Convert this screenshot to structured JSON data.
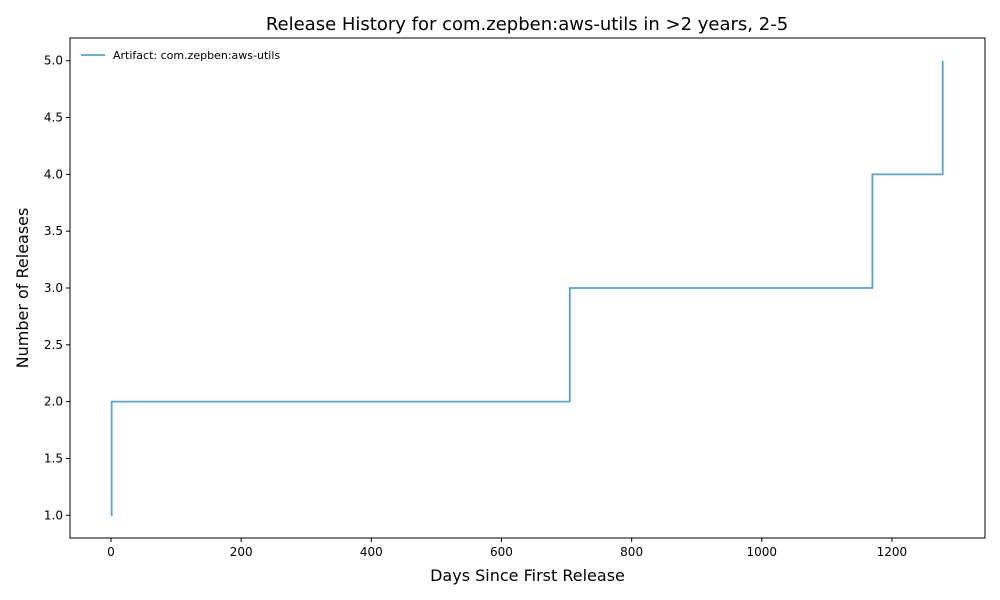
{
  "chart_data": {
    "type": "line",
    "step": "post",
    "title": "Release History for com.zepben:aws-utils in >2 years, 2-5",
    "xlabel": "Days Since First Release",
    "ylabel": "Number of Releases",
    "xlim": [
      -63,
      1343
    ],
    "ylim": [
      0.8,
      5.2
    ],
    "xticks": [
      0,
      200,
      400,
      600,
      800,
      1000,
      1200
    ],
    "xtick_labels": [
      "0",
      "200",
      "400",
      "600",
      "800",
      "1000",
      "1200"
    ],
    "yticks": [
      1.0,
      1.5,
      2.0,
      2.5,
      3.0,
      3.5,
      4.0,
      4.5,
      5.0
    ],
    "ytick_labels": [
      "1.0",
      "1.5",
      "2.0",
      "2.5",
      "3.0",
      "3.5",
      "4.0",
      "4.5",
      "5.0"
    ],
    "grid": false,
    "legend_position": "upper-left",
    "series": [
      {
        "name": "Artifact: com.zepben:aws-utils",
        "color": "#5ba3c9",
        "x": [
          0,
          1,
          705,
          1170,
          1278
        ],
        "y": [
          1,
          2,
          3,
          4,
          5
        ]
      }
    ]
  }
}
